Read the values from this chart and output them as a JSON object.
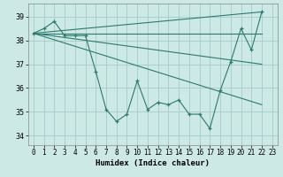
{
  "xlabel": "Humidex (Indice chaleur)",
  "background_color": "#cce9e5",
  "grid_color": "#aad0cc",
  "line_color": "#2a7a6f",
  "xlim": [
    -0.5,
    23.5
  ],
  "ylim": [
    33.6,
    39.55
  ],
  "yticks": [
    34,
    35,
    36,
    37,
    38,
    39
  ],
  "xticks": [
    0,
    1,
    2,
    3,
    4,
    5,
    6,
    7,
    8,
    9,
    10,
    11,
    12,
    13,
    14,
    15,
    16,
    17,
    18,
    19,
    20,
    21,
    22,
    23
  ],
  "main_x": [
    0,
    1,
    2,
    3,
    4,
    5,
    6,
    7,
    8,
    9,
    10,
    11,
    12,
    13,
    14,
    15,
    16,
    17,
    18,
    19,
    20,
    21,
    22
  ],
  "main_y": [
    38.3,
    38.5,
    38.8,
    38.2,
    38.2,
    38.2,
    36.7,
    35.1,
    34.6,
    34.9,
    36.3,
    35.1,
    35.4,
    35.3,
    35.5,
    34.9,
    34.9,
    34.3,
    35.9,
    37.1,
    38.5,
    37.6,
    39.2
  ],
  "fan_lines": [
    {
      "x": [
        0,
        22
      ],
      "y": [
        38.3,
        39.2
      ]
    },
    {
      "x": [
        0,
        22
      ],
      "y": [
        38.3,
        38.3
      ]
    },
    {
      "x": [
        0,
        22
      ],
      "y": [
        38.3,
        37.0
      ]
    },
    {
      "x": [
        0,
        22
      ],
      "y": [
        38.3,
        35.3
      ]
    }
  ]
}
